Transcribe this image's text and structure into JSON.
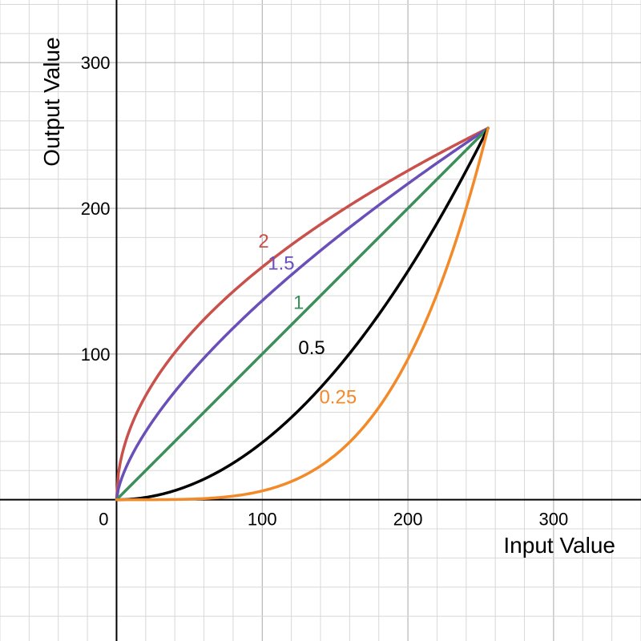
{
  "chart_data": {
    "type": "line",
    "xlabel": "Input Value",
    "ylabel": "Output Value",
    "xlim": [
      -80,
      360
    ],
    "ylim": [
      -97,
      343
    ],
    "grid": true,
    "x_ticks": [
      {
        "value": 0,
        "label": "0"
      },
      {
        "value": 100,
        "label": "100"
      },
      {
        "value": 200,
        "label": "200"
      },
      {
        "value": 300,
        "label": "300"
      }
    ],
    "y_ticks": [
      {
        "value": 100,
        "label": "100"
      },
      {
        "value": 200,
        "label": "200"
      },
      {
        "value": 300,
        "label": "300"
      }
    ],
    "series": [
      {
        "name": "2",
        "gamma": 2,
        "color": "#c9504b",
        "x": [
          0,
          16,
          32,
          48,
          64,
          80,
          96,
          112,
          128,
          144,
          160,
          176,
          192,
          208,
          224,
          240,
          255
        ],
        "y": [
          0,
          63.9,
          90.3,
          110.6,
          127.7,
          142.8,
          156.4,
          169.0,
          180.6,
          191.6,
          202.0,
          211.8,
          221.1,
          230.3,
          239.0,
          247.4,
          255
        ],
        "label_at": [
          101,
          173
        ]
      },
      {
        "name": "1.5",
        "gamma": 1.5,
        "color": "#6b4fb8",
        "x": [
          0,
          16,
          32,
          48,
          64,
          80,
          96,
          112,
          128,
          144,
          160,
          176,
          192,
          208,
          224,
          240,
          255
        ],
        "y": [
          0,
          40.3,
          64.0,
          83.9,
          101.6,
          118.0,
          133.3,
          147.8,
          161.6,
          174.9,
          187.7,
          200.1,
          212.2,
          224.0,
          235.4,
          246.6,
          255
        ],
        "label_at": [
          113,
          158
        ]
      },
      {
        "name": "1",
        "gamma": 1,
        "color": "#3a8f5a",
        "x": [
          0,
          64,
          128,
          192,
          255
        ],
        "y": [
          0,
          64,
          128,
          192,
          255
        ],
        "label_at": [
          125,
          131
        ]
      },
      {
        "name": "0.5",
        "gamma": 0.5,
        "color": "#000000",
        "x": [
          0,
          16,
          32,
          48,
          64,
          80,
          96,
          112,
          128,
          144,
          160,
          176,
          192,
          208,
          224,
          240,
          255
        ],
        "y": [
          0,
          1.0,
          4.0,
          9.0,
          16.1,
          25.1,
          36.1,
          49.2,
          64.3,
          81.3,
          100.4,
          121.5,
          144.6,
          169.7,
          196.8,
          225.9,
          255
        ],
        "label_at": [
          134,
          100
        ]
      },
      {
        "name": "0.25",
        "gamma": 0.25,
        "color": "#f28a2a",
        "x": [
          0,
          16,
          32,
          48,
          64,
          80,
          96,
          112,
          128,
          144,
          160,
          176,
          192,
          208,
          224,
          240,
          255
        ],
        "y": [
          0,
          0.0,
          0.1,
          0.3,
          1.0,
          2.5,
          5.1,
          9.5,
          16.2,
          25.9,
          39.5,
          57.9,
          82.0,
          112.9,
          151.9,
          200.1,
          255
        ],
        "label_at": [
          152,
          66
        ]
      }
    ]
  }
}
